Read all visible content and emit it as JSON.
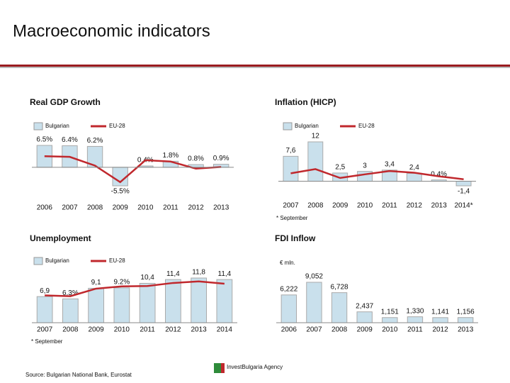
{
  "title": "Macroeconomic indicators",
  "source": "Source: Bulgarian National Bank,  Eurostat",
  "logo": "InvestBulgaria Agency",
  "chart_data": [
    {
      "type": "bar",
      "title": "Real GDP Growth",
      "categories": [
        "2006",
        "2007",
        "2008",
        "2009",
        "2010",
        "2011",
        "2012",
        "2013"
      ],
      "series": [
        {
          "name": "Bulgarian",
          "color": "#c9e0ec",
          "values": [
            6.5,
            6.4,
            6.2,
            -5.5,
            0.4,
            1.8,
            0.8,
            0.9
          ],
          "value_labels": [
            "6.5%",
            "6.4%",
            "6.2%",
            "-5.5%",
            "0.4%",
            "1.8%",
            "0.8%",
            "0.9%"
          ]
        },
        {
          "name": "EU-28",
          "type": "line",
          "color": "#c0282d",
          "values": [
            3.3,
            3.1,
            0.5,
            -4.4,
            2.1,
            1.7,
            -0.4,
            0.1
          ]
        }
      ]
    },
    {
      "type": "bar",
      "title": "Inflation (HICP)",
      "note": "* September",
      "categories": [
        "2007",
        "2008",
        "2009",
        "2010",
        "2011",
        "2012",
        "2013",
        "2014*"
      ],
      "series": [
        {
          "name": "Bulgarian",
          "color": "#c9e0ec",
          "values": [
            7.6,
            12,
            2.5,
            3,
            3.4,
            2.4,
            0.4,
            -1.4
          ],
          "value_labels": [
            "7,6",
            "12",
            "2,5",
            "3",
            "3,4",
            "2,4",
            "0.4%",
            "-1,4"
          ]
        },
        {
          "name": "EU-28",
          "type": "line",
          "color": "#c0282d",
          "values": [
            2.4,
            3.7,
            1.0,
            2.1,
            3.1,
            2.6,
            1.5,
            0.6
          ]
        }
      ]
    },
    {
      "type": "bar",
      "title": "Unemployment",
      "note": "* September",
      "categories": [
        "2007",
        "2008",
        "2009",
        "2010",
        "2011",
        "2012",
        "2013",
        "2014"
      ],
      "series": [
        {
          "name": "Bulgarian",
          "color": "#c9e0ec",
          "values": [
            6.9,
            6.3,
            9.1,
            9.2,
            10.4,
            11.4,
            11.8,
            11.4
          ],
          "value_labels": [
            "6,9",
            "6.3%",
            "9,1",
            "9.2%",
            "10,4",
            "11,4",
            "11,8",
            "11,4"
          ]
        },
        {
          "name": "EU-28",
          "type": "line",
          "color": "#c0282d",
          "values": [
            7.2,
            7.0,
            9.0,
            9.6,
            9.7,
            10.5,
            10.9,
            10.3
          ]
        }
      ]
    },
    {
      "type": "bar",
      "title": "FDI Inflow",
      "unit": "€ mln.",
      "categories": [
        "2006",
        "2007",
        "2008",
        "2009",
        "2010",
        "2011",
        "2012",
        "2013"
      ],
      "color": "#c9e0ec",
      "values": [
        6222,
        9052,
        6728,
        2437,
        1151,
        1330,
        1141,
        1156
      ],
      "value_labels": [
        "6,222",
        "9,052",
        "6,728",
        "2,437",
        "1,151",
        "1,330",
        "1,141",
        "1,156"
      ]
    }
  ]
}
